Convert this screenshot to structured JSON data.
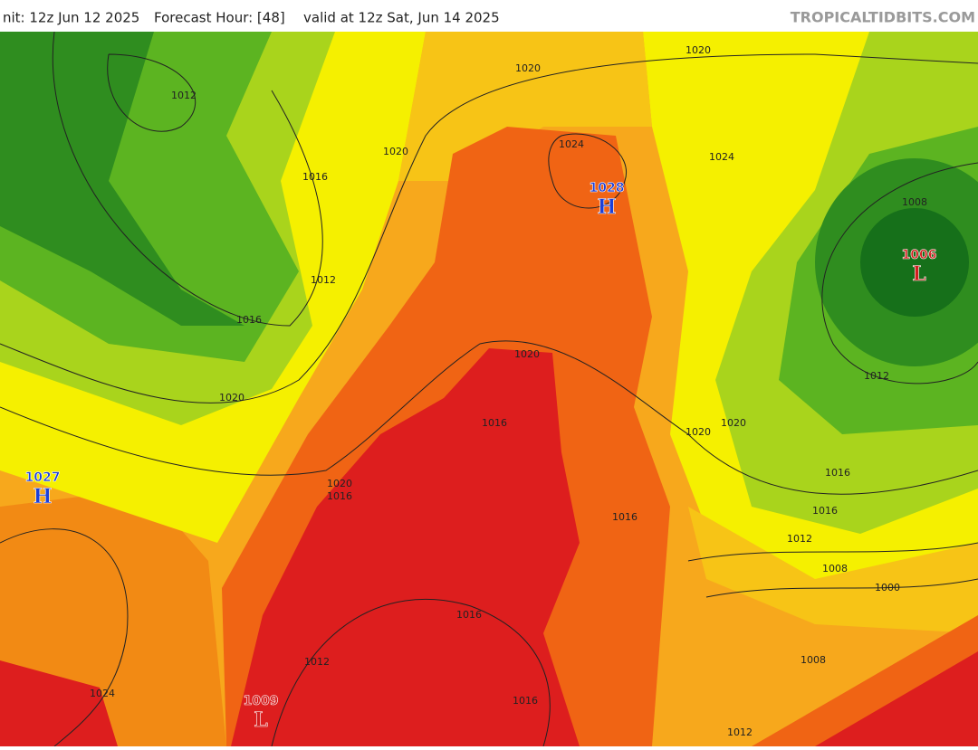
{
  "header": {
    "init": "nit: 12z Jun 12 2025",
    "forecast_hour": "Forecast Hour: [48]",
    "valid": "valid at 12z Sat, Jun 14 2025",
    "watermark": "TROPICALTIDBITS.COM"
  },
  "pressure_centers": [
    {
      "value": "1028",
      "letter": "H"
    },
    {
      "value": "1027",
      "letter": "H"
    },
    {
      "value": "1006",
      "letter": "L"
    },
    {
      "value": "1009",
      "letter": "L"
    }
  ],
  "isobar_labels": [
    "1020",
    "1020",
    "1012",
    "1020",
    "1016",
    "1024",
    "1024",
    "1008",
    "1012",
    "1016",
    "1020",
    "1012",
    "1020",
    "1016",
    "1020",
    "1020",
    "1016",
    "1020",
    "1016",
    "1016",
    "1016",
    "1012",
    "1008",
    "1000",
    "1016",
    "1012",
    "1008",
    "1024",
    "1016",
    "1012"
  ]
}
